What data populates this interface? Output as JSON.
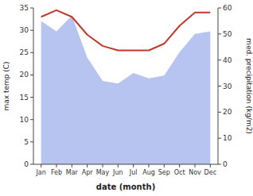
{
  "chart_data": {
    "type": "line",
    "categories": [
      "Jan",
      "Feb",
      "Mar",
      "Apr",
      "May",
      "Jun",
      "Jul",
      "Aug",
      "Sep",
      "Oct",
      "Nov",
      "Dec"
    ],
    "series": [
      {
        "type": "area",
        "color": "#b8c4f0",
        "axis": "y2",
        "values": [
          55.0,
          51.0,
          57.0,
          41.0,
          32.0,
          31.0,
          35.0,
          33.0,
          34.0,
          43.0,
          50.0,
          51.0
        ]
      },
      {
        "type": "line",
        "color": "#c0392b",
        "values": [
          33.0,
          34.5,
          33.0,
          29.0,
          26.5,
          25.5,
          25.5,
          25.5,
          27.0,
          31.0,
          34.0,
          34.0
        ]
      }
    ],
    "xlabel": "date (month)",
    "ylabel": "max temp (C)",
    "y2label": "med. precipitation (kg/m2)",
    "ylim": [
      0,
      35
    ],
    "yticks": [
      0,
      5,
      10,
      15,
      20,
      25,
      30,
      35
    ],
    "y2lim": [
      0,
      60
    ],
    "y2ticks": [
      0,
      10,
      20,
      30,
      40,
      50,
      60
    ],
    "grid": false
  }
}
